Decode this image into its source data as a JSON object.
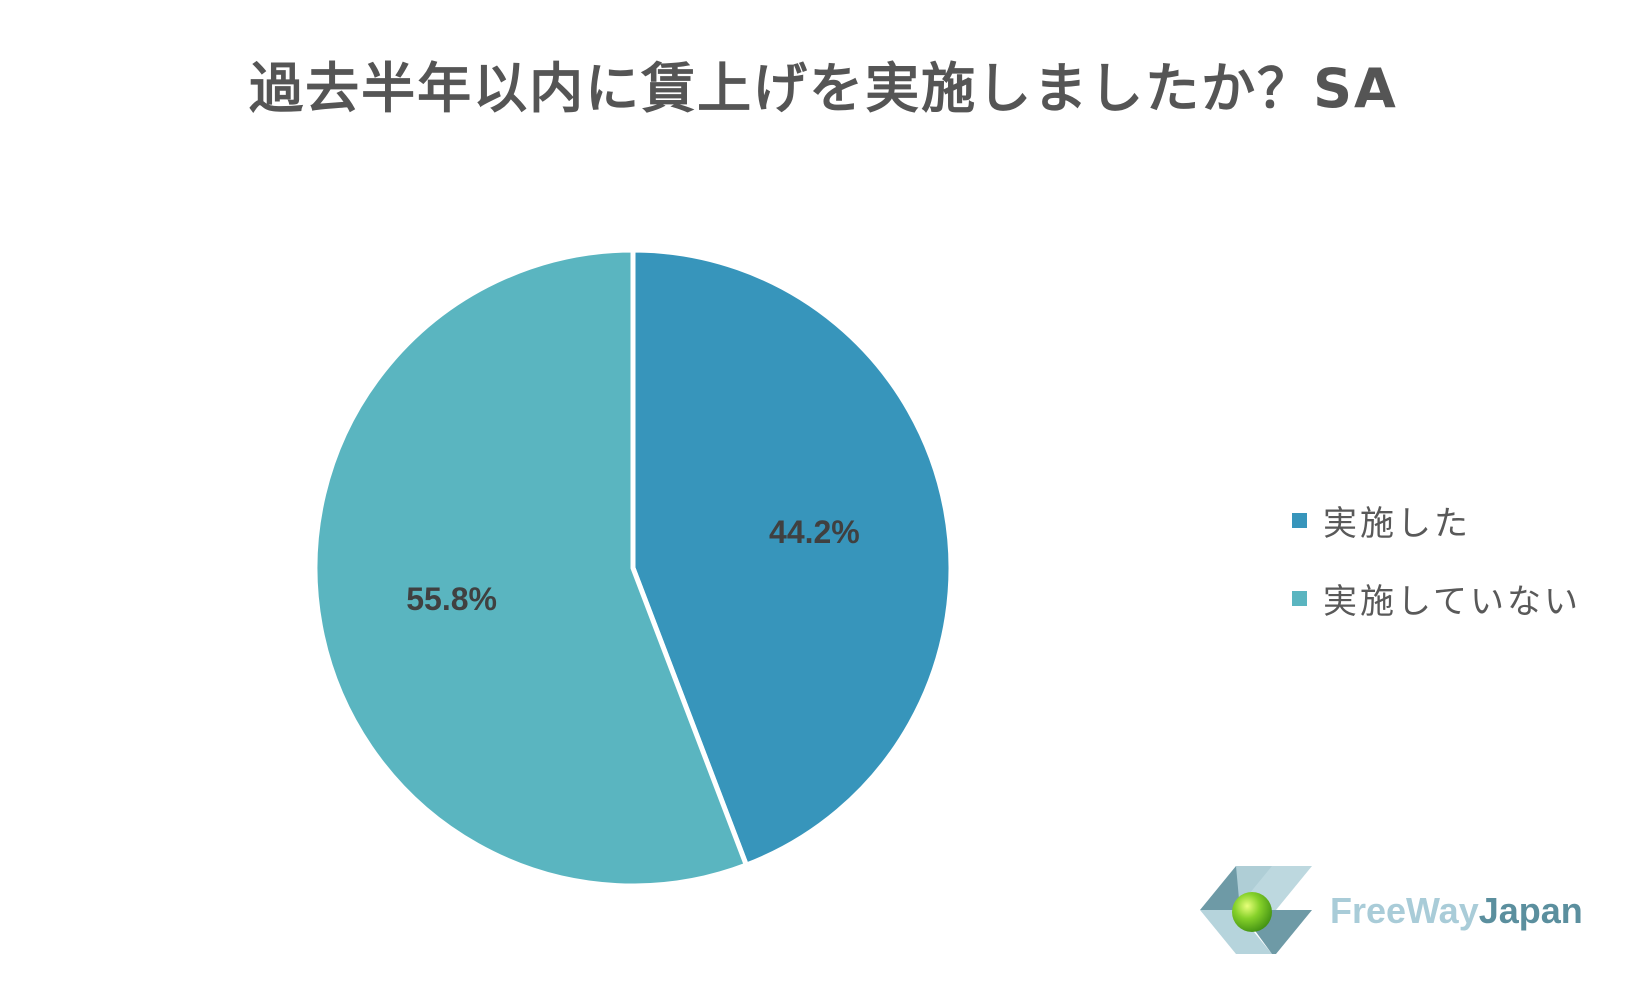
{
  "chart_data": {
    "type": "pie",
    "title": "過去半年以内に賃上げを実施しましたか？SA",
    "slices": [
      {
        "label": "実施した",
        "value": 44.2,
        "display": "44.2%",
        "color": "#3795bb"
      },
      {
        "label": "実施していない",
        "value": 55.8,
        "display": "55.8%",
        "color": "#5ab5c0"
      }
    ],
    "legend_position": "right",
    "start_angle_deg": 0,
    "direction": "clockwise"
  },
  "logo": {
    "text_part1": "FreeWay",
    "text_part2": "Japan",
    "colors": {
      "light": "#a9ccd8",
      "dark": "#5b8f9e",
      "sphere": "#7fd02a"
    }
  }
}
